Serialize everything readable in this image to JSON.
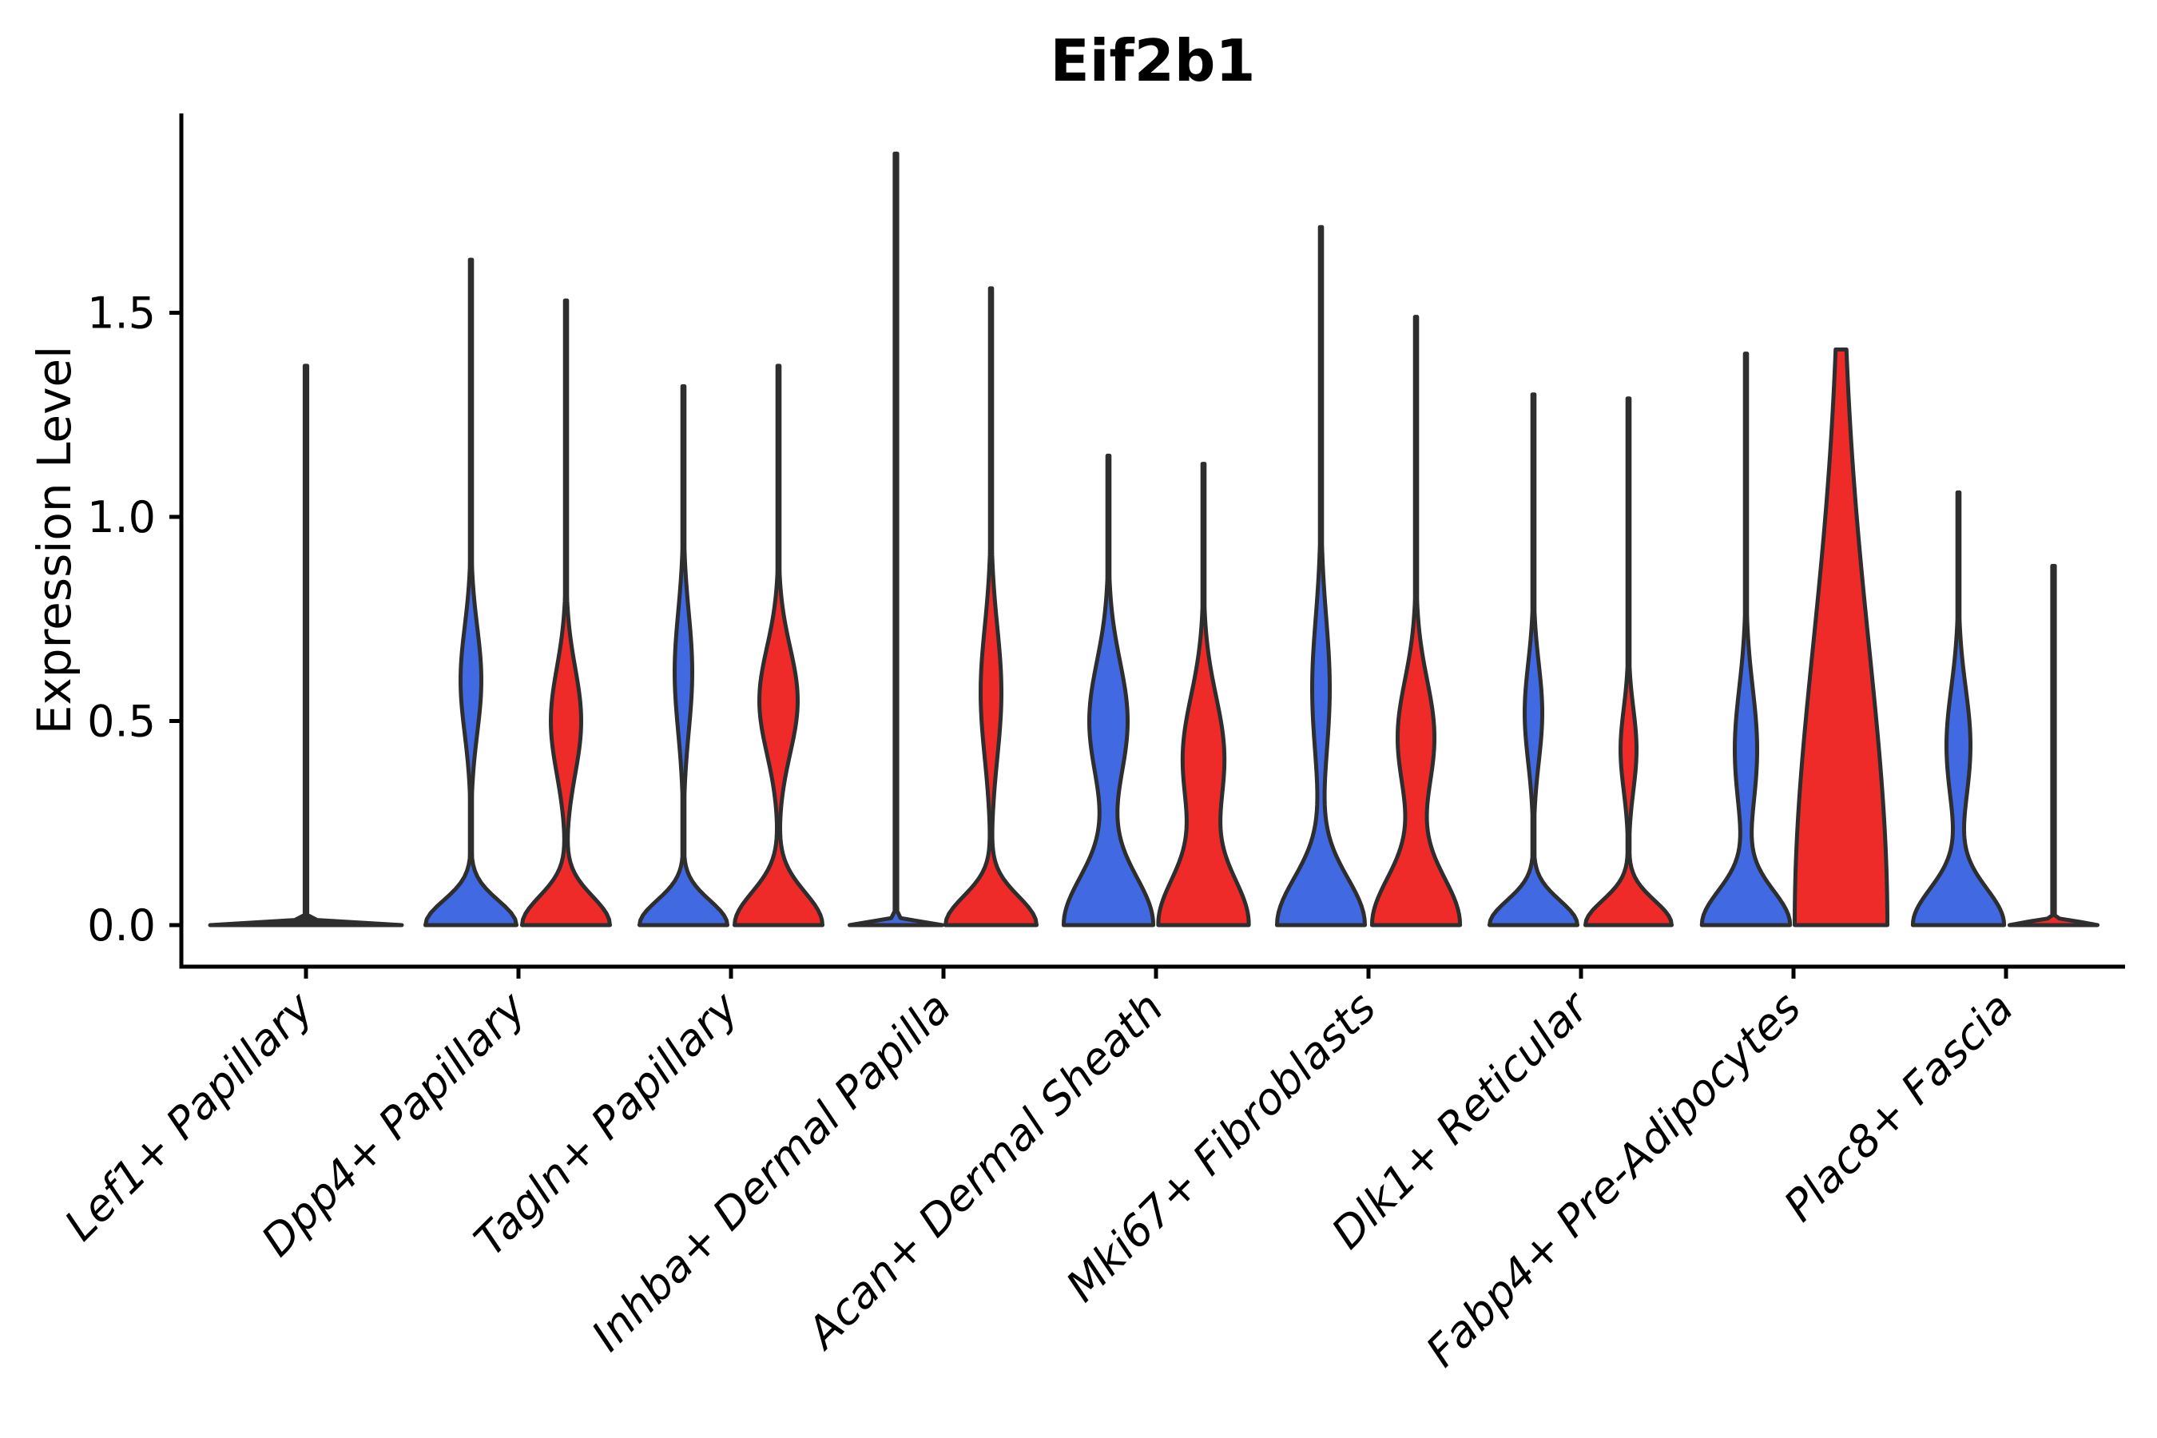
{
  "chart_data": {
    "type": "violin",
    "title": "Eif2b1",
    "ylabel": "Expression Level",
    "legend": "none",
    "grid": "off",
    "ylim": [
      -0.1,
      1.99
    ],
    "y_ticks": [
      {
        "value": 0.0,
        "label": "0.0"
      },
      {
        "value": 0.5,
        "label": "0.5"
      },
      {
        "value": 1.0,
        "label": "1.0"
      },
      {
        "value": 1.5,
        "label": "1.5"
      }
    ],
    "categories": [
      "Lef1+ Papillary",
      "Dpp4+ Papillary",
      "Tagln+ Papillary",
      "Inhba+ Dermal Papilla",
      "Acan+ Dermal Sheath",
      "Mki67+ Fibroblasts",
      "Dlk1+ Reticular",
      "Fabp4+ Pre-Adipocytes",
      "Plac8+ Fascia"
    ],
    "colors": {
      "blue": "#4169E1",
      "red": "#EF2B2A",
      "outline": "#2E2E2E",
      "axis": "#000000"
    },
    "violins": [
      {
        "cat": 0,
        "side": "center",
        "color": "none",
        "flat": true,
        "max": 1.37,
        "base_w": 120,
        "base_s": 0.006
      },
      {
        "cat": 1,
        "side": "left",
        "color": "blue",
        "max": 1.63,
        "base_w": 57,
        "base_s": 0.06,
        "mu": 0.6,
        "mw": 13,
        "ms": 0.13
      },
      {
        "cat": 1,
        "side": "right",
        "color": "red",
        "max": 1.53,
        "base_w": 55,
        "base_s": 0.07,
        "mu": 0.5,
        "mw": 19,
        "ms": 0.13
      },
      {
        "cat": 2,
        "side": "left",
        "color": "blue",
        "max": 1.32,
        "base_w": 55,
        "base_s": 0.06,
        "mu": 0.62,
        "mw": 11,
        "ms": 0.145
      },
      {
        "cat": 2,
        "side": "right",
        "color": "red",
        "max": 1.37,
        "base_w": 55,
        "base_s": 0.08,
        "mu": 0.55,
        "mw": 24,
        "ms": 0.13
      },
      {
        "cat": 3,
        "side": "left",
        "color": "blue",
        "flat": true,
        "max": 1.89,
        "base_w": 58,
        "base_s": 0.008
      },
      {
        "cat": 3,
        "side": "right",
        "color": "red",
        "max": 1.56,
        "base_w": 57,
        "base_s": 0.07,
        "mu": 0.57,
        "mw": 13,
        "ms": 0.16
      },
      {
        "cat": 4,
        "side": "left",
        "color": "blue",
        "max": 1.15,
        "base_w": 56,
        "base_s": 0.12,
        "mu": 0.5,
        "mw": 24,
        "ms": 0.145
      },
      {
        "cat": 4,
        "side": "right",
        "color": "red",
        "max": 1.13,
        "base_w": 56,
        "base_s": 0.12,
        "mu": 0.41,
        "mw": 26,
        "ms": 0.15
      },
      {
        "cat": 5,
        "side": "left",
        "color": "blue",
        "max": 1.71,
        "base_w": 55,
        "base_s": 0.115,
        "mu": 0.58,
        "mw": 11,
        "ms": 0.17
      },
      {
        "cat": 5,
        "side": "right",
        "color": "red",
        "max": 1.49,
        "base_w": 55,
        "base_s": 0.12,
        "mu": 0.46,
        "mw": 23,
        "ms": 0.14
      },
      {
        "cat": 6,
        "side": "left",
        "color": "blue",
        "max": 1.3,
        "base_w": 55,
        "base_s": 0.06,
        "mu": 0.52,
        "mw": 11,
        "ms": 0.12
      },
      {
        "cat": 6,
        "side": "right",
        "color": "red",
        "max": 1.29,
        "base_w": 54,
        "base_s": 0.06,
        "mu": 0.43,
        "mw": 10,
        "ms": 0.1
      },
      {
        "cat": 7,
        "side": "left",
        "color": "blue",
        "max": 1.4,
        "base_w": 55,
        "base_s": 0.085,
        "mu": 0.43,
        "mw": 14,
        "ms": 0.15
      },
      {
        "cat": 7,
        "side": "right",
        "color": "red",
        "max": 1.41,
        "base_w": 58,
        "base_s": 0.68
      },
      {
        "cat": 8,
        "side": "left",
        "color": "blue",
        "max": 1.06,
        "base_w": 57,
        "base_s": 0.09,
        "mu": 0.44,
        "mw": 15,
        "ms": 0.14
      },
      {
        "cat": 8,
        "side": "right",
        "color": "red",
        "flat": true,
        "max": 0.88,
        "base_w": 55,
        "base_s": 0.008
      }
    ]
  }
}
